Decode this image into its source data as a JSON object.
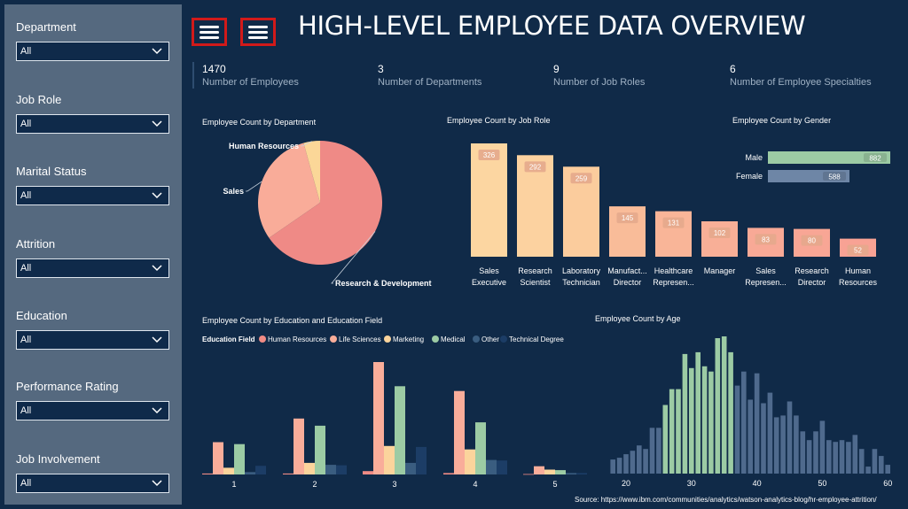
{
  "header": {
    "title": "HIGH-LEVEL EMPLOYEE DATA OVERVIEW"
  },
  "filters": [
    {
      "label": "Department",
      "value": "All"
    },
    {
      "label": "Job Role",
      "value": "All"
    },
    {
      "label": "Marital Status",
      "value": "All"
    },
    {
      "label": "Attrition",
      "value": "All"
    },
    {
      "label": "Education",
      "value": "All"
    },
    {
      "label": "Performance Rating",
      "value": "All"
    },
    {
      "label": "Job Involvement",
      "value": "All"
    }
  ],
  "kpis": [
    {
      "value": "1470",
      "label": "Number of Employees"
    },
    {
      "value": "3",
      "label": "Number of Departments"
    },
    {
      "value": "9",
      "label": "Number of Job Roles"
    },
    {
      "value": "6",
      "label": "Number of Employee Specialties"
    }
  ],
  "colors": {
    "background": "#102a48",
    "sidebar": "#55697f",
    "research_dev": "#ef8a86",
    "sales": "#f9ac99",
    "human_resources": "#fbd798",
    "male": "#9ccba4",
    "female": "#6e86a6",
    "menu_border": "#d11a1a"
  },
  "source": "Source: https://www.ibm.com/communities/analytics/watson-analytics-blog/hr-employee-attrition/",
  "chart_data": [
    {
      "type": "pie",
      "title": "Employee Count by Department",
      "categories": [
        "Research & Development",
        "Sales",
        "Human Resources"
      ],
      "values": [
        961,
        446,
        63
      ],
      "colors": [
        "#ef8a86",
        "#f9ac99",
        "#fbd798"
      ]
    },
    {
      "type": "bar",
      "title": "Employee Count by Job Role",
      "categories": [
        [
          "Sales",
          "Executive"
        ],
        [
          "Research",
          "Scientist"
        ],
        [
          "Laboratory",
          "Technician"
        ],
        [
          "Manufact...",
          "Director"
        ],
        [
          "Healthcare",
          "Represen..."
        ],
        [
          "Manager"
        ],
        [
          "Sales",
          "Represen..."
        ],
        [
          "Research",
          "Director"
        ],
        [
          "Human",
          "Resources"
        ]
      ],
      "values": [
        326,
        292,
        259,
        145,
        131,
        102,
        83,
        80,
        52
      ],
      "colors": [
        "#fcd6a1",
        "#fcd2a0",
        "#fbcc9d",
        "#f9bc99",
        "#f9b598",
        "#f8af97",
        "#f8a996",
        "#f8a695",
        "#f8a294"
      ]
    },
    {
      "type": "bar",
      "orientation": "horizontal",
      "title": "Employee Count by Gender",
      "categories": [
        "Male",
        "Female"
      ],
      "values": [
        882,
        588
      ],
      "colors": [
        "#9ccba4",
        "#6e86a6"
      ]
    },
    {
      "type": "bar",
      "title": "Employee Count by Education and Education Field",
      "legend_title": "Education Field",
      "categories": [
        "1",
        "2",
        "3",
        "4",
        "5"
      ],
      "series": [
        {
          "name": "Human Resources",
          "color": "#f08b85",
          "values": [
            2,
            2,
            7,
            3,
            1
          ]
        },
        {
          "name": "Life Sciences",
          "color": "#f9ad9a",
          "values": [
            67,
            116,
            233,
            173,
            17
          ]
        },
        {
          "name": "Marketing",
          "color": "#fbd49c",
          "values": [
            14,
            24,
            59,
            52,
            10
          ]
        },
        {
          "name": "Medical",
          "color": "#9ccba4",
          "values": [
            63,
            101,
            183,
            108,
            9
          ]
        },
        {
          "name": "Other",
          "color": "#3a5d80",
          "values": [
            5,
            20,
            24,
            30,
            3
          ]
        },
        {
          "name": "Technical Degree",
          "color": "#1c3d66",
          "values": [
            18,
            19,
            57,
            29,
            3
          ]
        }
      ],
      "ylim": [
        0,
        240
      ]
    },
    {
      "type": "bar",
      "title": "Employee Count by Age",
      "xticks": [
        20,
        30,
        40,
        50,
        60
      ],
      "x": [
        18,
        19,
        20,
        21,
        22,
        23,
        24,
        25,
        26,
        27,
        28,
        29,
        30,
        31,
        32,
        33,
        34,
        35,
        36,
        37,
        38,
        39,
        40,
        41,
        42,
        43,
        44,
        45,
        46,
        47,
        48,
        49,
        50,
        51,
        52,
        53,
        54,
        55,
        56,
        57,
        58,
        59,
        60
      ],
      "values": [
        8,
        9,
        11,
        13,
        16,
        14,
        26,
        26,
        39,
        48,
        48,
        68,
        60,
        69,
        61,
        58,
        77,
        78,
        69,
        50,
        58,
        42,
        57,
        40,
        46,
        32,
        33,
        41,
        33,
        24,
        19,
        24,
        30,
        19,
        18,
        19,
        18,
        22,
        14,
        4,
        14,
        10,
        5
      ],
      "highlight_range": [
        26,
        36
      ],
      "colors": {
        "base": "#4f6a8d",
        "highlight": "#9ccba4"
      }
    }
  ]
}
